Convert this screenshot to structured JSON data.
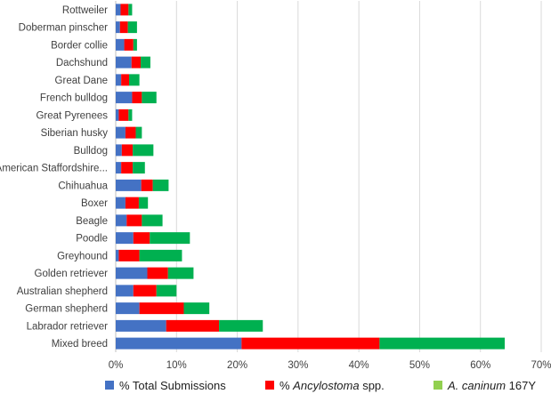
{
  "chart_data": {
    "type": "bar",
    "orientation": "horizontal",
    "stacked": true,
    "categories": [
      "Rottweiler",
      "Doberman pinscher",
      "Border collie",
      "Dachshund",
      "Great Dane",
      "French bulldog",
      "Great Pyrenees",
      "Siberian husky",
      "Bulldog",
      "American Staffordshire...",
      "Chihuahua",
      "Boxer",
      "Beagle",
      "Poodle",
      "Greyhound",
      "Golden retriever",
      "Australian shepherd",
      "German shepherd",
      "Labrador retriever",
      "Mixed breed"
    ],
    "series": [
      {
        "name": "% Total Submissions",
        "color": "#4472c4",
        "values": [
          0.8,
          0.7,
          1.4,
          2.6,
          0.9,
          2.7,
          0.5,
          1.6,
          1.0,
          0.9,
          4.2,
          1.6,
          1.8,
          2.9,
          0.5,
          5.2,
          2.9,
          3.9,
          8.3,
          20.7
        ]
      },
      {
        "name": "% Ancylostoma spp.",
        "color": "#ff0000",
        "values": [
          1.3,
          1.3,
          1.5,
          1.5,
          1.3,
          1.6,
          1.6,
          1.7,
          1.8,
          1.9,
          1.9,
          2.2,
          2.5,
          2.7,
          3.4,
          3.4,
          3.8,
          7.3,
          8.7,
          22.7
        ]
      },
      {
        "name": "A. caninum 167Y",
        "color": "#00b050",
        "values": [
          0.6,
          1.5,
          0.6,
          1.6,
          1.7,
          2.4,
          0.6,
          1.0,
          3.4,
          2.0,
          2.6,
          1.5,
          3.4,
          6.6,
          7.0,
          4.2,
          3.3,
          4.2,
          7.2,
          20.6
        ]
      }
    ],
    "legend": [
      {
        "prefix": "% Total Submissions",
        "italic": "",
        "suffix": "",
        "color": "#4472c4"
      },
      {
        "prefix": "% ",
        "italic": "Ancylostoma",
        "suffix": " spp.",
        "color": "#ff0000"
      },
      {
        "prefix": "",
        "italic": "A. caninum",
        "suffix": " 167Y",
        "color": "#92d050"
      }
    ],
    "x_ticks": [
      "0%",
      "10%",
      "20%",
      "30%",
      "40%",
      "50%",
      "60%",
      "70%"
    ],
    "xlim": [
      0,
      70
    ],
    "grid": "vertical",
    "legend_position": "bottom",
    "title": "",
    "xlabel": "",
    "ylabel": ""
  }
}
